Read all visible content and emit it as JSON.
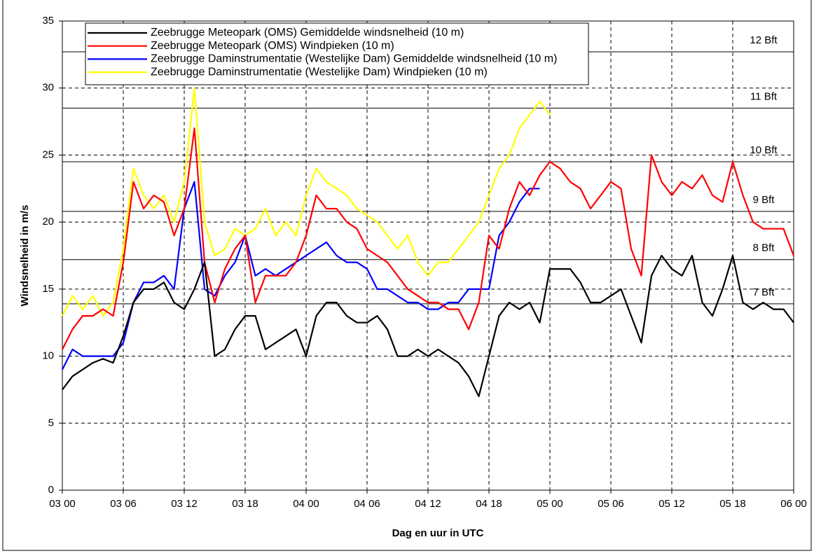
{
  "chart_data": {
    "type": "line",
    "xlabel": "Dag en uur in UTC",
    "ylabel": "Windsnelheid in m/s",
    "x": [
      0,
      1,
      2,
      3,
      4,
      5,
      6,
      7,
      8,
      9,
      10,
      11,
      12,
      13,
      14,
      15,
      16,
      17,
      18,
      19,
      20,
      21,
      22,
      23,
      24,
      25,
      26,
      27,
      28,
      29,
      30,
      31,
      32,
      33,
      34,
      35,
      36,
      37,
      38,
      39,
      40,
      41,
      42,
      43,
      44,
      45,
      46,
      47,
      48,
      49,
      50,
      51,
      52,
      53,
      54,
      55,
      56,
      57,
      58,
      59,
      60,
      61,
      62,
      63,
      64,
      65,
      66,
      67,
      68,
      69,
      70,
      71,
      72
    ],
    "xlim": [
      0,
      72
    ],
    "xticks": [
      {
        "value": 0,
        "label": "03 00"
      },
      {
        "value": 6,
        "label": "03 06"
      },
      {
        "value": 12,
        "label": "03 12"
      },
      {
        "value": 18,
        "label": "03 18"
      },
      {
        "value": 24,
        "label": "04 00"
      },
      {
        "value": 30,
        "label": "04 06"
      },
      {
        "value": 36,
        "label": "04 12"
      },
      {
        "value": 42,
        "label": "04 18"
      },
      {
        "value": 48,
        "label": "05 00"
      },
      {
        "value": 54,
        "label": "05 06"
      },
      {
        "value": 60,
        "label": "05 12"
      },
      {
        "value": 66,
        "label": "05 18"
      },
      {
        "value": 72,
        "label": "06 00"
      }
    ],
    "ylim": [
      0,
      35
    ],
    "yticks": [
      0,
      5,
      10,
      15,
      20,
      25,
      30,
      35
    ],
    "grid": true,
    "reference_lines": [
      {
        "value": 32.7,
        "label": "12 Bft"
      },
      {
        "value": 28.5,
        "label": "11 Bft"
      },
      {
        "value": 24.5,
        "label": "10 Bft"
      },
      {
        "value": 20.8,
        "label": "9 Bft"
      },
      {
        "value": 17.2,
        "label": "8 Bft"
      },
      {
        "value": 13.9,
        "label": "7 Bft"
      }
    ],
    "series": [
      {
        "name": "Zeebrugge Meteopark (OMS) Gemiddelde windsnelheid (10 m)",
        "color": "#000000",
        "values": [
          7.5,
          8.5,
          9,
          9.5,
          9.8,
          9.5,
          11.5,
          14,
          15,
          15,
          15.5,
          14,
          13.5,
          15,
          17,
          10,
          10.5,
          12,
          13,
          13,
          10.5,
          11,
          11.5,
          12,
          10,
          13,
          14,
          14,
          13,
          12.5,
          12.5,
          13,
          12,
          10,
          10,
          10.5,
          10,
          10.5,
          10,
          9.5,
          8.5,
          7,
          10,
          13,
          14,
          13.5,
          14,
          12.5,
          16.5,
          16.5,
          16.5,
          15.5,
          14,
          14,
          14.5,
          15,
          13,
          11,
          16,
          17.5,
          16.5,
          16,
          17.5,
          14,
          13,
          15,
          17.5,
          14,
          13.5,
          14,
          13.5,
          13.5,
          12.5
        ]
      },
      {
        "name": "Zeebrugge Meteopark (OMS) Windpieken (10 m)",
        "color": "#ff0000",
        "values": [
          10.5,
          12,
          13,
          13,
          13.5,
          13,
          17,
          23,
          21,
          22,
          21.5,
          19,
          21,
          27,
          17,
          14,
          16.5,
          18,
          19,
          14,
          16,
          16,
          16,
          17,
          19,
          22,
          21,
          21,
          20,
          19.5,
          18,
          17.5,
          17,
          16,
          15,
          14.5,
          14,
          14,
          13.5,
          13.5,
          12,
          14,
          19,
          18,
          21,
          23,
          22,
          23.5,
          24.5,
          24,
          23,
          22.5,
          21,
          22,
          23,
          22.5,
          18,
          16,
          25,
          23,
          22,
          23,
          22.5,
          23.5,
          22,
          21.5,
          24.5,
          22,
          20,
          19.5,
          19.5,
          19.5,
          17.5
        ]
      },
      {
        "name": "Zeebrugge Daminstrumentatie (Westelijke Dam) Gemiddelde windsnelheid (10 m)",
        "color": "#0000ff",
        "values": [
          9,
          10.5,
          10,
          10,
          10,
          10,
          11,
          14,
          15.5,
          15.5,
          16,
          15,
          21,
          23,
          15,
          14.5,
          16,
          17,
          19,
          16,
          16.5,
          16,
          16.5,
          17,
          17.5,
          18,
          18.5,
          17.5,
          17,
          17,
          16.5,
          15,
          15,
          14.5,
          14,
          14,
          13.5,
          13.5,
          14,
          14,
          15,
          15,
          15,
          19,
          20,
          21.5,
          22.5,
          22.5,
          null,
          null,
          null,
          null,
          null,
          null,
          null,
          null,
          null,
          null,
          null,
          null,
          null,
          null,
          null,
          null,
          null,
          null,
          null,
          null,
          null,
          null,
          null,
          null,
          null
        ]
      },
      {
        "name": "Zeebrugge Daminstrumentatie (Westelijke Dam) Windpieken (10 m)",
        "color": "#ffff00",
        "values": [
          13,
          14.5,
          13.5,
          14.5,
          13,
          14,
          18,
          24,
          22,
          21,
          22,
          20,
          23,
          30,
          20,
          17.5,
          18,
          19.5,
          19,
          19.5,
          21,
          19,
          20,
          19,
          22,
          24,
          23,
          22.5,
          22,
          21,
          20.5,
          20,
          19,
          18,
          19,
          17,
          16,
          17,
          17,
          18,
          19,
          20,
          22,
          24,
          25,
          27,
          28,
          29,
          28,
          null,
          null,
          null,
          null,
          null,
          null,
          null,
          null,
          null,
          null,
          null,
          null,
          null,
          null,
          null,
          null,
          null,
          null,
          null,
          null,
          null,
          null,
          null,
          null
        ]
      }
    ]
  }
}
